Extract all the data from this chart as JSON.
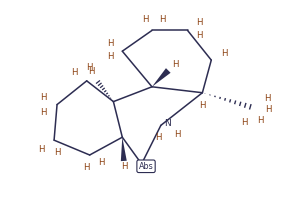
{
  "bg_color": "#ffffff",
  "bond_color": "#2d2d52",
  "H_color": "#8b4010",
  "N_color": "#2d2d52",
  "fig_width": 2.98,
  "fig_height": 2.24,
  "xlim": [
    0,
    10
  ],
  "ylim": [
    0,
    7.5
  ]
}
